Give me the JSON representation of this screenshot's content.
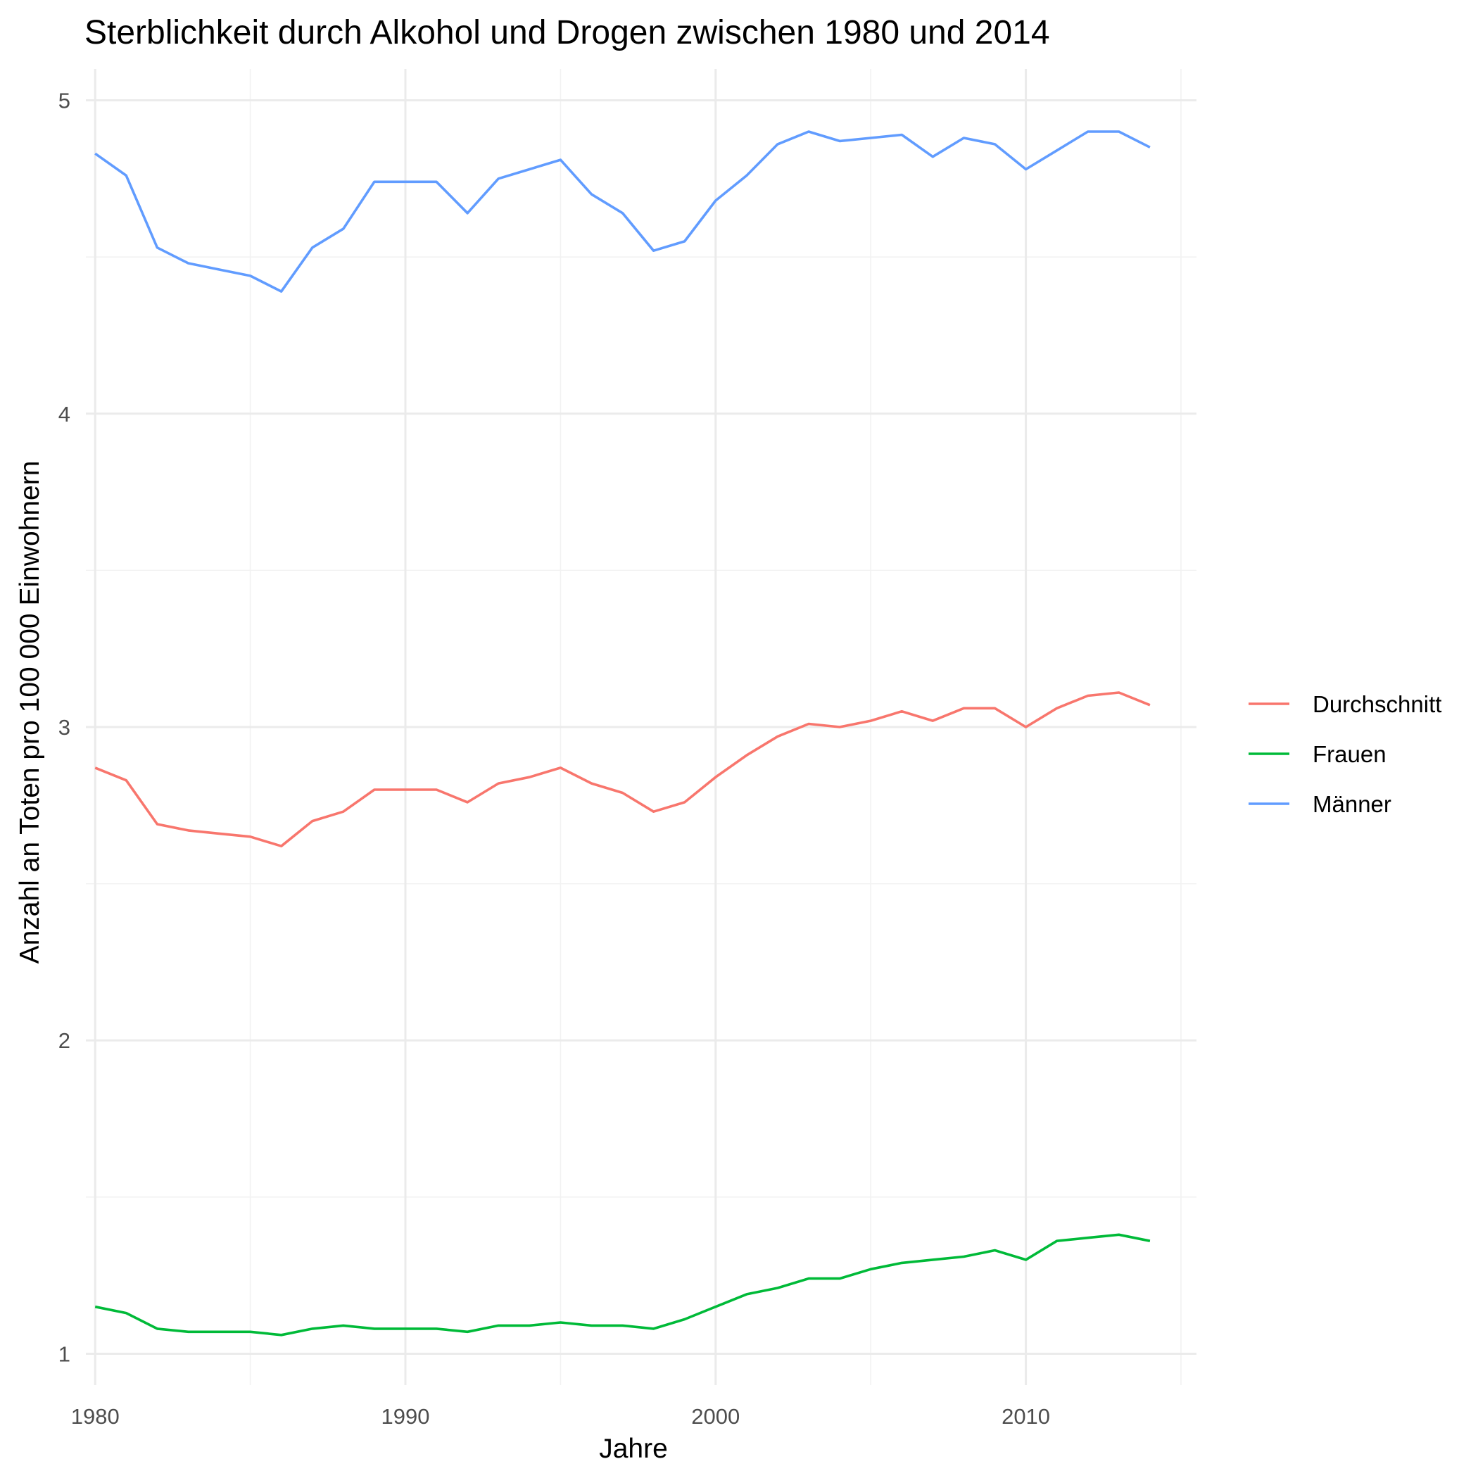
{
  "chart_data": {
    "type": "line",
    "title": "Sterblichkeit durch Alkohol und Drogen zwischen 1980 und 2014",
    "xlabel": "Jahre",
    "ylabel": "Anzahl an Toten pro 100 000 Einwohnern",
    "xlim": [
      1979.7,
      2015.5
    ],
    "ylim": [
      0.9,
      5.1
    ],
    "x_ticks": [
      1980,
      1990,
      2000,
      2010
    ],
    "x_tick_labels": [
      "1980",
      "1990",
      "2000",
      "2010"
    ],
    "y_ticks": [
      1,
      2,
      3,
      4,
      5
    ],
    "y_tick_labels": [
      "1",
      "2",
      "3",
      "4",
      "5"
    ],
    "grid": true,
    "legend_position": "right",
    "x": [
      1980,
      1981,
      1982,
      1983,
      1984,
      1985,
      1986,
      1987,
      1988,
      1989,
      1990,
      1991,
      1992,
      1993,
      1994,
      1995,
      1996,
      1997,
      1998,
      1999,
      2000,
      2001,
      2002,
      2003,
      2004,
      2005,
      2006,
      2007,
      2008,
      2009,
      2010,
      2011,
      2012,
      2013,
      2014
    ],
    "series": [
      {
        "name": "Durchschnitt",
        "color": "#f8766d",
        "values": [
          2.87,
          2.83,
          2.69,
          2.67,
          2.66,
          2.65,
          2.62,
          2.7,
          2.73,
          2.8,
          2.8,
          2.8,
          2.76,
          2.82,
          2.84,
          2.87,
          2.82,
          2.79,
          2.73,
          2.76,
          2.84,
          2.91,
          2.97,
          3.01,
          3.0,
          3.02,
          3.05,
          3.02,
          3.06,
          3.06,
          3.0,
          3.06,
          3.1,
          3.11,
          3.07
        ]
      },
      {
        "name": "Frauen",
        "color": "#00ba38",
        "values": [
          1.15,
          1.13,
          1.08,
          1.07,
          1.07,
          1.07,
          1.06,
          1.08,
          1.09,
          1.08,
          1.08,
          1.08,
          1.07,
          1.09,
          1.09,
          1.1,
          1.09,
          1.09,
          1.08,
          1.11,
          1.15,
          1.19,
          1.21,
          1.24,
          1.24,
          1.27,
          1.29,
          1.3,
          1.31,
          1.33,
          1.3,
          1.36,
          1.37,
          1.38,
          1.36
        ]
      },
      {
        "name": "Männer",
        "color": "#619cff",
        "values": [
          4.83,
          4.76,
          4.53,
          4.48,
          4.46,
          4.44,
          4.39,
          4.53,
          4.59,
          4.74,
          4.74,
          4.74,
          4.64,
          4.75,
          4.78,
          4.81,
          4.7,
          4.64,
          4.52,
          4.55,
          4.68,
          4.76,
          4.86,
          4.9,
          4.87,
          4.88,
          4.89,
          4.82,
          4.88,
          4.86,
          4.78,
          4.84,
          4.9,
          4.9,
          4.85
        ]
      }
    ]
  }
}
